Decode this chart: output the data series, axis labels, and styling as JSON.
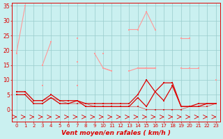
{
  "bg_color": "#caf0f0",
  "grid_color": "#99cccc",
  "light_pink": "#ff9999",
  "dark_red": "#dd0000",
  "xlabel": "Vent moyen/en rafales ( km/h )",
  "ylabel_ticks": [
    0,
    5,
    10,
    15,
    20,
    25,
    30,
    35
  ],
  "xlim": [
    -0.5,
    23.5
  ],
  "ylim": [
    0,
    36
  ],
  "x": [
    0,
    1,
    2,
    3,
    4,
    5,
    6,
    7,
    8,
    9,
    10,
    11,
    12,
    13,
    14,
    15,
    16,
    17,
    18,
    19,
    20,
    21,
    22,
    23
  ],
  "light_series": [
    [
      19,
      35,
      null,
      null,
      null,
      null,
      null,
      null,
      null,
      null,
      null,
      null,
      null,
      null,
      null,
      null,
      null,
      null,
      null,
      null,
      null,
      null,
      null,
      null
    ],
    [
      null,
      35,
      null,
      15,
      23,
      null,
      null,
      24,
      null,
      null,
      null,
      null,
      null,
      null,
      null,
      null,
      null,
      null,
      null,
      null,
      null,
      null,
      null,
      null
    ],
    [
      null,
      null,
      null,
      null,
      null,
      null,
      null,
      null,
      null,
      null,
      null,
      null,
      null,
      27,
      27,
      33,
      27,
      null,
      null,
      24,
      null,
      null,
      null,
      null
    ],
    [
      19,
      null,
      null,
      15,
      null,
      null,
      null,
      null,
      null,
      19,
      14,
      13,
      null,
      null,
      null,
      null,
      null,
      null,
      null,
      null,
      null,
      null,
      null,
      null
    ],
    [
      null,
      null,
      null,
      null,
      null,
      null,
      null,
      null,
      null,
      null,
      null,
      null,
      null,
      27,
      26,
      null,
      26,
      null,
      null,
      null,
      null,
      null,
      null,
      null
    ],
    [
      null,
      null,
      null,
      8,
      null,
      null,
      null,
      16,
      null,
      null,
      null,
      null,
      null,
      null,
      null,
      null,
      null,
      null,
      null,
      null,
      null,
      null,
      null,
      null
    ],
    [
      null,
      null,
      null,
      null,
      null,
      null,
      null,
      null,
      null,
      null,
      19,
      null,
      null,
      null,
      14,
      14,
      14,
      null,
      null,
      null,
      null,
      null,
      null,
      null
    ],
    [
      null,
      null,
      null,
      null,
      null,
      null,
      null,
      8,
      null,
      null,
      null,
      null,
      null,
      null,
      null,
      null,
      null,
      null,
      null,
      null,
      null,
      null,
      null,
      null
    ],
    [
      null,
      null,
      null,
      null,
      null,
      null,
      null,
      null,
      null,
      null,
      null,
      null,
      null,
      null,
      null,
      null,
      null,
      null,
      null,
      null,
      null,
      null,
      null,
      10
    ],
    [
      null,
      null,
      null,
      null,
      null,
      null,
      null,
      null,
      null,
      null,
      null,
      null,
      null,
      null,
      null,
      null,
      null,
      null,
      null,
      null,
      null,
      16,
      null,
      null
    ],
    [
      null,
      null,
      null,
      null,
      null,
      null,
      null,
      null,
      null,
      null,
      null,
      null,
      null,
      null,
      null,
      null,
      null,
      null,
      null,
      null,
      24,
      null,
      null,
      null
    ],
    [
      null,
      null,
      null,
      null,
      null,
      null,
      null,
      null,
      null,
      null,
      null,
      null,
      null,
      null,
      null,
      null,
      null,
      null,
      null,
      14,
      14,
      14,
      null,
      10
    ]
  ],
  "light_connected": [
    {
      "x": [
        0,
        1,
        3,
        4,
        7,
        9,
        10,
        11,
        13,
        14,
        15,
        16,
        19,
        20
      ],
      "y": [
        19,
        35,
        15,
        23,
        24,
        19,
        14,
        13,
        27,
        27,
        33,
        27,
        24,
        24
      ]
    },
    {
      "x": [
        0,
        3,
        7,
        10,
        11,
        13,
        14,
        15,
        16,
        19,
        20,
        21,
        23
      ],
      "y": [
        19,
        15,
        16,
        14,
        13,
        13,
        14,
        14,
        14,
        14,
        14,
        14,
        10
      ]
    },
    {
      "x": [
        3,
        7
      ],
      "y": [
        8,
        8
      ]
    },
    {
      "x": [
        10,
        14,
        15,
        16
      ],
      "y": [
        19,
        14,
        14,
        14
      ]
    }
  ],
  "dark_rafales": [
    6,
    6,
    3,
    3,
    5,
    3,
    3,
    3,
    2,
    2,
    2,
    2,
    2,
    2,
    5,
    10,
    6,
    9,
    9,
    1,
    1,
    2,
    2,
    2
  ],
  "dark_mean": [
    5,
    5,
    2,
    2,
    4,
    2,
    2,
    3,
    1,
    1,
    1,
    1,
    1,
    1,
    4,
    1,
    6,
    3,
    8,
    1,
    1,
    1,
    2,
    2
  ],
  "dark_flat": [
    6,
    6,
    3,
    3,
    4,
    3,
    2,
    2,
    2,
    1,
    1,
    1,
    1,
    1,
    1,
    0,
    0,
    0,
    0,
    0,
    1,
    1,
    1,
    2
  ],
  "arrows_x": [
    0,
    1,
    2,
    3,
    4,
    5,
    6,
    7,
    8,
    9,
    10,
    11,
    12,
    13,
    14,
    15,
    16,
    17,
    18,
    19,
    20,
    21,
    22,
    23
  ],
  "arrow_angles": [
    90,
    90,
    120,
    90,
    90,
    90,
    90,
    90,
    90,
    150,
    90,
    120,
    90,
    120,
    150,
    150,
    90,
    90,
    90,
    90,
    90,
    90,
    90,
    90
  ]
}
